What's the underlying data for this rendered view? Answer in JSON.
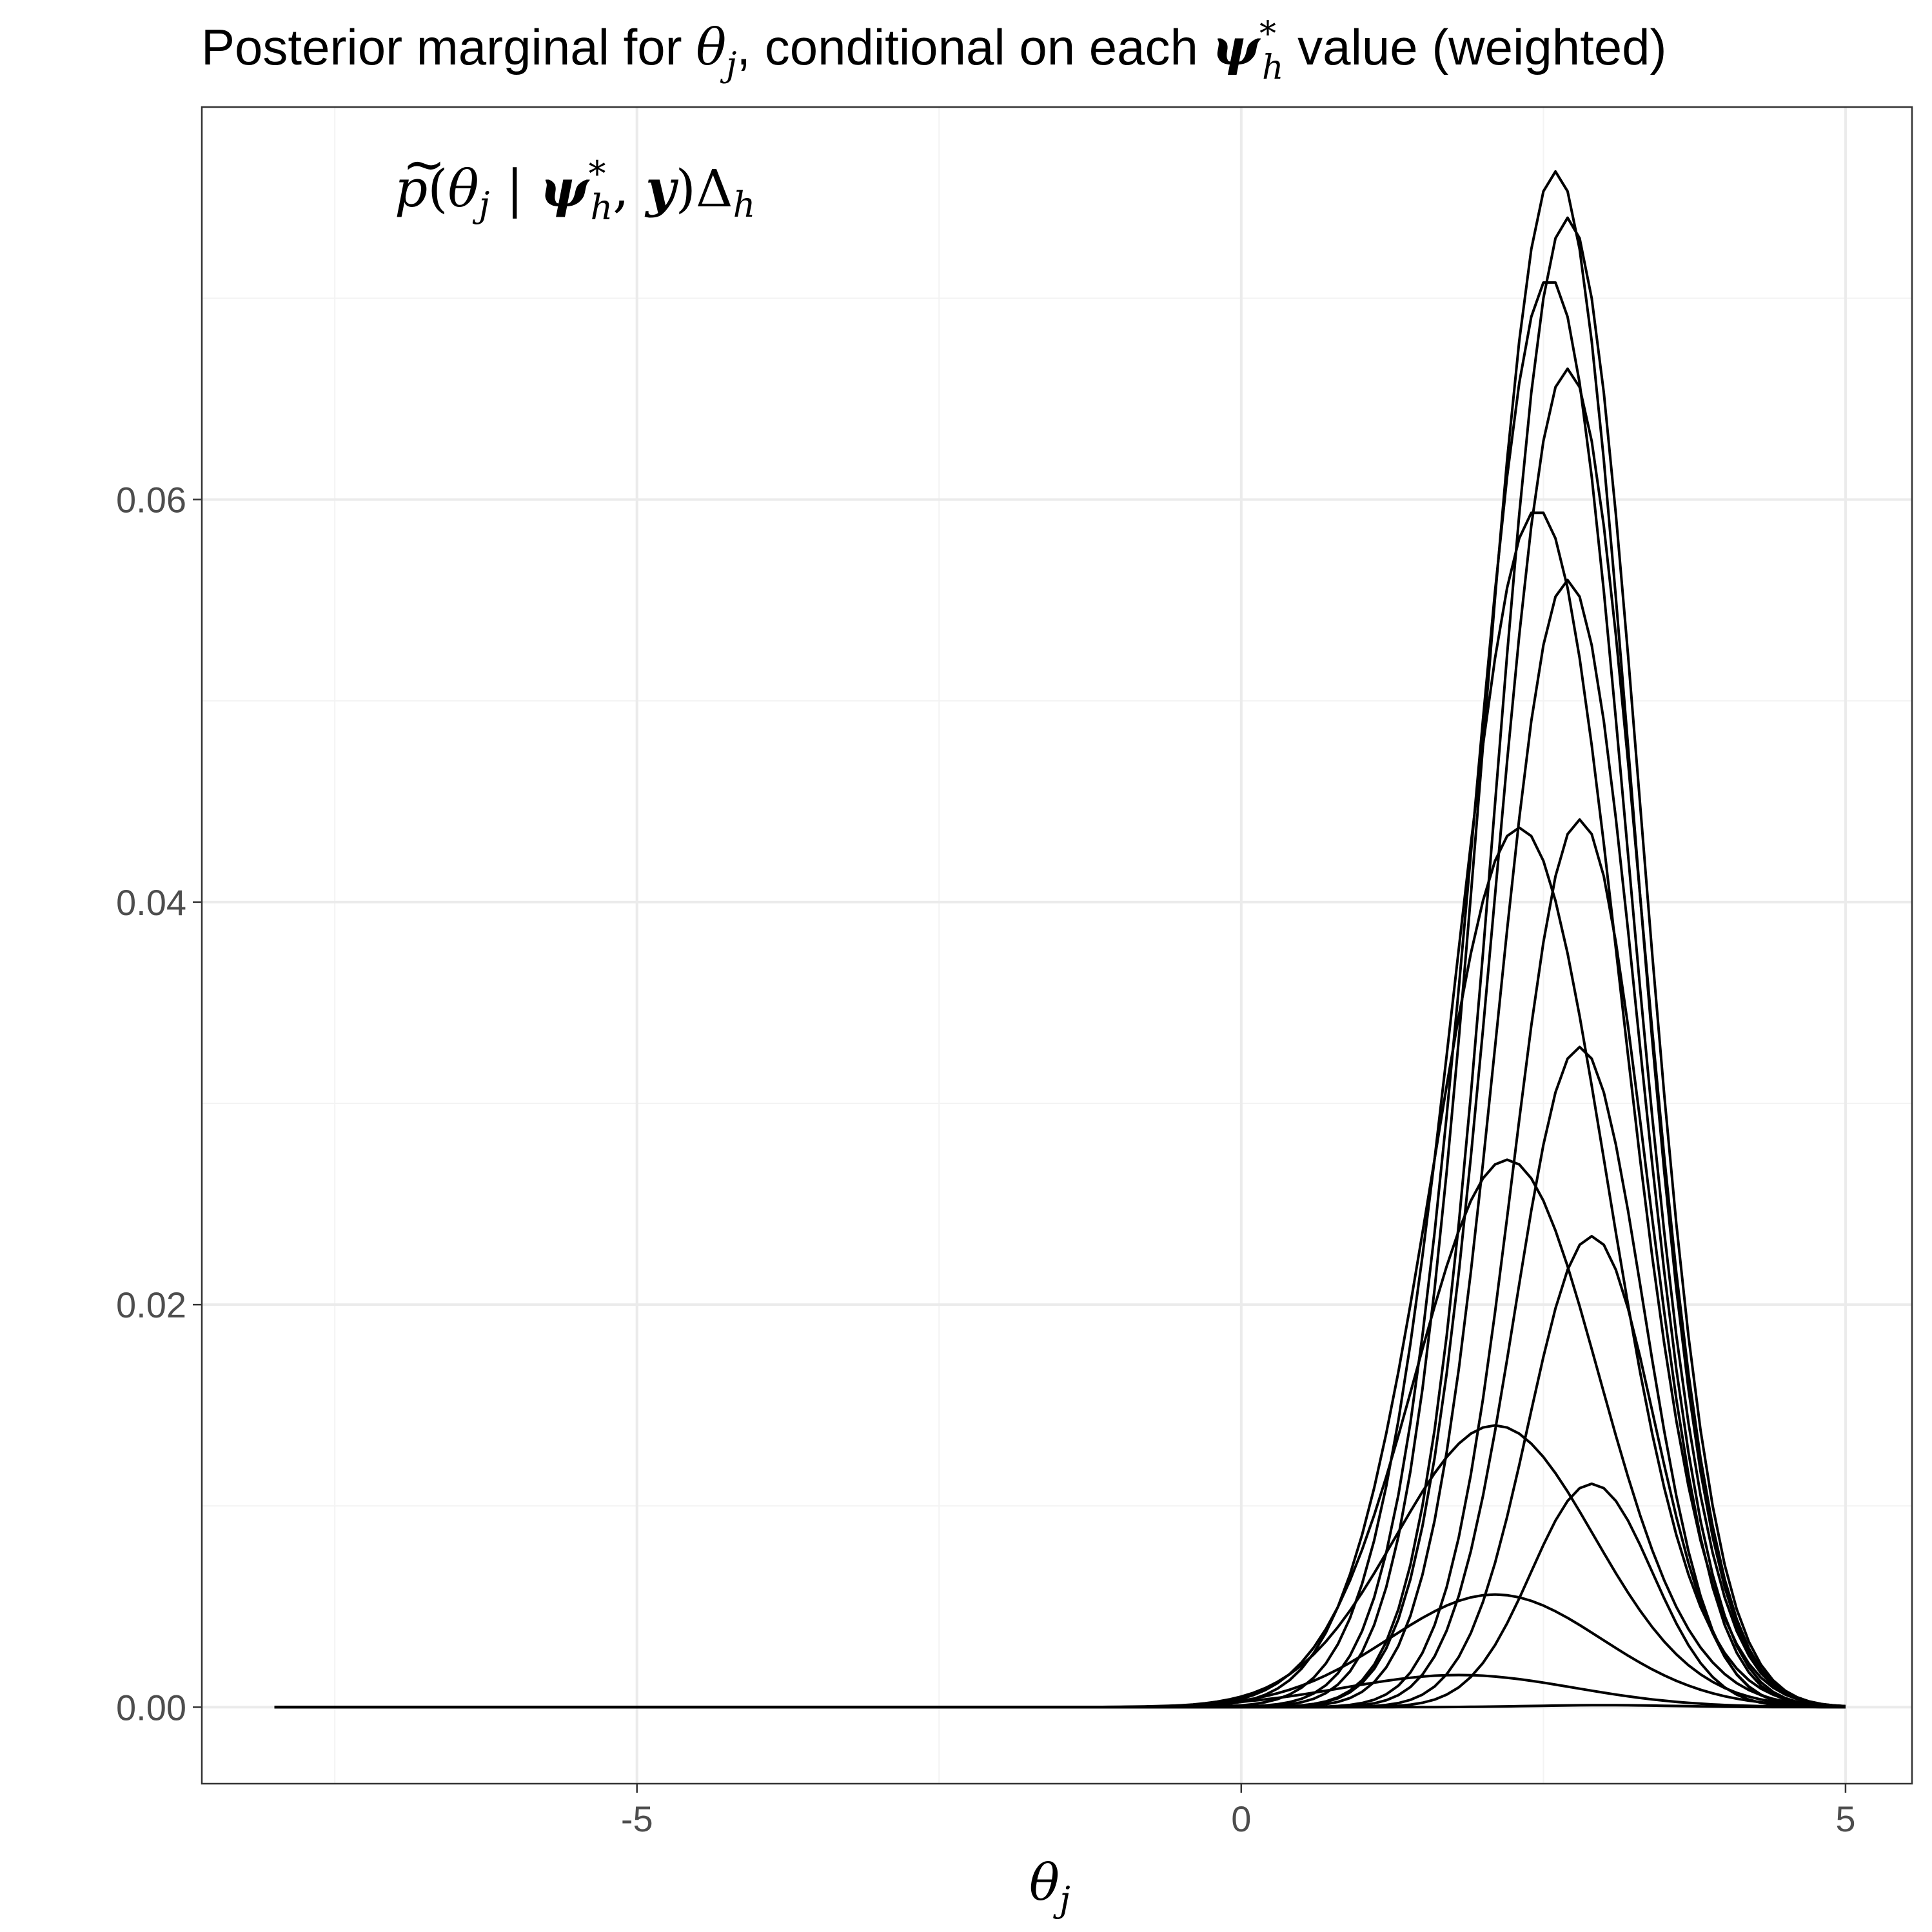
{
  "title": {
    "prefix": "Posterior marginal for ",
    "theta": "θ",
    "theta_sub": "j",
    "middle": ", conditional on each ",
    "psi": "ψ",
    "psi_sup": "*",
    "psi_sub": "h",
    "suffix": " value (weighted)"
  },
  "annotation": {
    "p": "p",
    "tilde": "~",
    "open": "(",
    "theta": "θ",
    "theta_sub": "j",
    "bar": " | ",
    "psi": "ψ",
    "psi_sup": "*",
    "psi_sub": "h",
    "comma": ", ",
    "y": "y",
    "close": ")",
    "delta": "Δ",
    "delta_sub": "h"
  },
  "chart_data": {
    "type": "line",
    "xlabel": {
      "symbol": "θ",
      "sub": "j"
    },
    "ylabel": "",
    "xlim": [
      -8.6,
      5.55
    ],
    "ylim": [
      -0.0038,
      0.0795
    ],
    "x_major_ticks": [
      -5,
      0,
      5
    ],
    "x_tick_labels": [
      "-5",
      "0",
      "5"
    ],
    "y_major_ticks": [
      0.0,
      0.02,
      0.04,
      0.06
    ],
    "y_tick_labels": [
      "0.00",
      "0.02",
      "0.04",
      "0.06"
    ],
    "x_minor_grid": [
      -7.5,
      -2.5,
      2.5
    ],
    "y_minor_grid": [
      0.01,
      0.03,
      0.05,
      0.07
    ],
    "grid": true,
    "x_range": [
      -8,
      5
    ],
    "series_shape": "gaussian",
    "series": [
      {
        "peak_x": 2.6,
        "peak_y": 0.0763,
        "sd": 0.62
      },
      {
        "peak_x": 2.7,
        "peak_y": 0.074,
        "sd": 0.6
      },
      {
        "peak_x": 2.55,
        "peak_y": 0.071,
        "sd": 0.64
      },
      {
        "peak_x": 2.7,
        "peak_y": 0.0665,
        "sd": 0.6
      },
      {
        "peak_x": 2.45,
        "peak_y": 0.0595,
        "sd": 0.68
      },
      {
        "peak_x": 2.7,
        "peak_y": 0.056,
        "sd": 0.58
      },
      {
        "peak_x": 2.3,
        "peak_y": 0.0437,
        "sd": 0.72
      },
      {
        "peak_x": 2.8,
        "peak_y": 0.0441,
        "sd": 0.55
      },
      {
        "peak_x": 2.8,
        "peak_y": 0.0328,
        "sd": 0.53
      },
      {
        "peak_x": 2.2,
        "peak_y": 0.0272,
        "sd": 0.76
      },
      {
        "peak_x": 2.9,
        "peak_y": 0.0234,
        "sd": 0.52
      },
      {
        "peak_x": 2.1,
        "peak_y": 0.014,
        "sd": 0.82
      },
      {
        "peak_x": 2.9,
        "peak_y": 0.0111,
        "sd": 0.5
      },
      {
        "peak_x": 2.1,
        "peak_y": 0.0056,
        "sd": 0.88
      },
      {
        "peak_x": 1.8,
        "peak_y": 0.0016,
        "sd": 0.95
      },
      {
        "peak_x": 3.0,
        "peak_y": 0.0001,
        "sd": 0.6
      }
    ]
  }
}
